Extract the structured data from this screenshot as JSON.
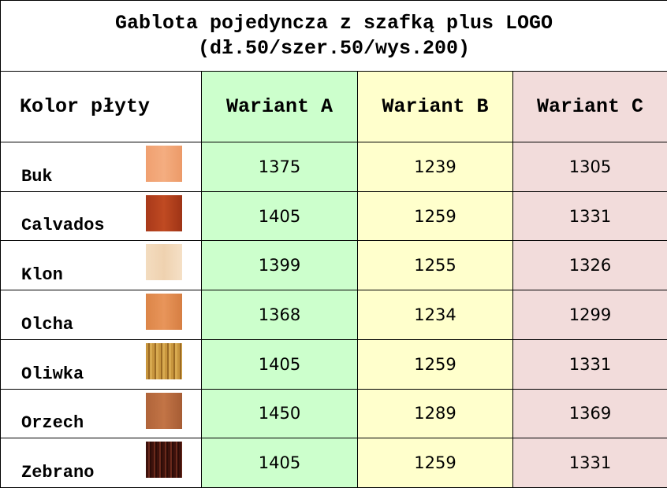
{
  "header": {
    "title": [
      "Gablota pojedyncza z szafką plus LOGO",
      "(dł.50/szer.50/wys.200)"
    ]
  },
  "table": {
    "columns": [
      "Kolor płyty",
      "Wariant A",
      "Wariant B",
      "Wariant C"
    ],
    "rows": [
      [
        "Buk",
        1375,
        1239,
        1305
      ],
      [
        "Calvados",
        1405,
        1259,
        1331
      ],
      [
        "Klon",
        1399,
        1255,
        1326
      ],
      [
        "Olcha",
        1368,
        1234,
        1299
      ],
      [
        "Oliwka",
        1405,
        1259,
        1331
      ],
      [
        "Orzech",
        1450,
        1289,
        1369
      ],
      [
        "Zebrano",
        1405,
        1259,
        1331
      ]
    ]
  }
}
